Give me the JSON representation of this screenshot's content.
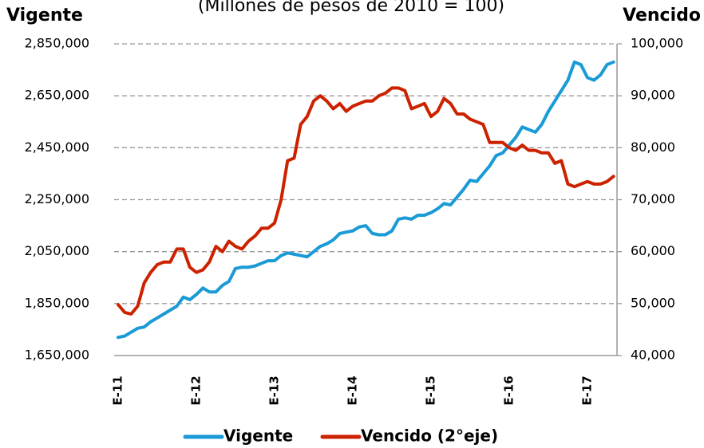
{
  "chart_data": {
    "type": "line",
    "title": "(Millones de pesos de 2010 = 100)",
    "ylabel": "Vigente",
    "y2label": "Vencido",
    "categories": [
      "E-11",
      null,
      null,
      null,
      null,
      null,
      null,
      null,
      null,
      null,
      null,
      null,
      "E-12",
      null,
      null,
      null,
      null,
      null,
      null,
      null,
      null,
      null,
      null,
      null,
      "E-13",
      null,
      null,
      null,
      null,
      null,
      null,
      null,
      null,
      null,
      null,
      null,
      "E-14",
      null,
      null,
      null,
      null,
      null,
      null,
      null,
      null,
      null,
      null,
      null,
      "E-15",
      null,
      null,
      null,
      null,
      null,
      null,
      null,
      null,
      null,
      null,
      null,
      "E-16",
      null,
      null,
      null,
      null,
      null,
      null,
      null,
      null,
      null,
      null,
      null,
      "E-17",
      null,
      null,
      null,
      null
    ],
    "series": [
      {
        "name": "Vigente",
        "color": "#1a9ad6",
        "axis": "y",
        "values": [
          1720000,
          1725000,
          1740000,
          1755000,
          1760000,
          1780000,
          1795000,
          1810000,
          1825000,
          1840000,
          1875000,
          1865000,
          1885000,
          1910000,
          1895000,
          1895000,
          1920000,
          1935000,
          1985000,
          1990000,
          1990000,
          1995000,
          2005000,
          2015000,
          2015000,
          2035000,
          2045000,
          2040000,
          2035000,
          2030000,
          2050000,
          2070000,
          2080000,
          2095000,
          2120000,
          2125000,
          2130000,
          2145000,
          2150000,
          2120000,
          2115000,
          2115000,
          2130000,
          2175000,
          2180000,
          2175000,
          2190000,
          2190000,
          2200000,
          2215000,
          2235000,
          2230000,
          2260000,
          2290000,
          2325000,
          2320000,
          2350000,
          2380000,
          2420000,
          2430000,
          2460000,
          2490000,
          2530000,
          2520000,
          2510000,
          2540000,
          2590000,
          2630000,
          2670000,
          2710000,
          2780000,
          2770000,
          2720000,
          2710000,
          2730000,
          2770000,
          2780000
        ]
      },
      {
        "name": "Vencido (2°eje)",
        "color": "#cc2200",
        "axis": "y2",
        "values": [
          49800,
          48300,
          48000,
          49500,
          54000,
          56000,
          57500,
          58000,
          58000,
          60500,
          60500,
          57000,
          56000,
          56500,
          58000,
          61000,
          60000,
          62000,
          61000,
          60500,
          62000,
          63000,
          64500,
          64500,
          65500,
          70000,
          77500,
          78000,
          84500,
          86000,
          89000,
          90000,
          89000,
          87500,
          88500,
          87000,
          88000,
          88500,
          89000,
          89000,
          90000,
          90500,
          91500,
          91500,
          91000,
          87500,
          88000,
          88500,
          86000,
          87000,
          89500,
          88500,
          86500,
          86500,
          85500,
          85000,
          84500,
          81000,
          81000,
          81000,
          80000,
          79500,
          80500,
          79500,
          79500,
          79000,
          79000,
          77000,
          77500,
          73000,
          72500,
          73000,
          73500,
          73000,
          73000,
          73500,
          74500
        ]
      }
    ],
    "ylim": [
      1650000,
      2850000
    ],
    "yticks": [
      {
        "value": 1650000,
        "label": "1,650,000"
      },
      {
        "value": 1850000,
        "label": "1,850,000"
      },
      {
        "value": 2050000,
        "label": "2,050,000"
      },
      {
        "value": 2250000,
        "label": "2,250,000"
      },
      {
        "value": 2450000,
        "label": "2,450,000"
      },
      {
        "value": 2650000,
        "label": "2,650,000"
      },
      {
        "value": 2850000,
        "label": "2,850,000"
      }
    ],
    "y2lim": [
      40000,
      100000
    ],
    "y2ticks": [
      {
        "value": 40000,
        "label": "40,000"
      },
      {
        "value": 50000,
        "label": "50,000"
      },
      {
        "value": 60000,
        "label": "60,000"
      },
      {
        "value": 70000,
        "label": "70,000"
      },
      {
        "value": 80000,
        "label": "80,000"
      },
      {
        "value": 90000,
        "label": "90,000"
      },
      {
        "value": 100000,
        "label": "100,000"
      }
    ],
    "grid": true,
    "legend": "bottom"
  }
}
